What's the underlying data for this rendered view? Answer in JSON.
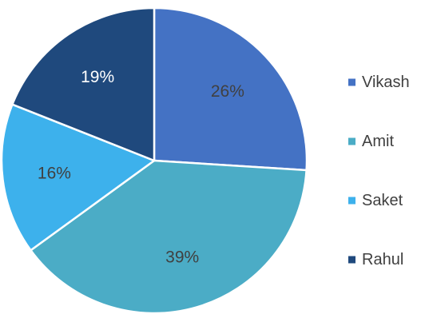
{
  "chart_data": {
    "type": "pie",
    "categories": [
      "Vikash",
      "Amit",
      "Saket",
      "Rahul"
    ],
    "values": [
      26,
      39,
      16,
      19
    ],
    "data_labels": [
      "26%",
      "39%",
      "16%",
      "19%"
    ],
    "colors": [
      "#4472C4",
      "#4BACC6",
      "#3DB1EC",
      "#1F497D"
    ],
    "label_colors": [
      "#404040",
      "#404040",
      "#404040",
      "#ffffff"
    ],
    "start_angle": "12 o'clock",
    "direction": "clockwise",
    "legend": {
      "position": "right",
      "entries": [
        "Vikash",
        "Amit",
        "Saket",
        "Rahul"
      ]
    },
    "title": ""
  }
}
